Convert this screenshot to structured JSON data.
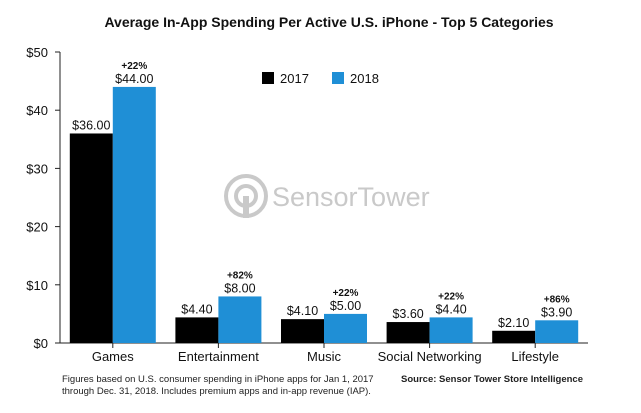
{
  "chart_data": {
    "type": "bar",
    "title": "Average In-App Spending Per Active U.S. iPhone - Top 5 Categories",
    "xlabel": "",
    "ylabel": "",
    "ylim": [
      0,
      50
    ],
    "yticks": [
      0,
      10,
      20,
      30,
      40,
      50
    ],
    "ytick_labels": [
      "$0",
      "$10",
      "$20",
      "$30",
      "$40",
      "$50"
    ],
    "grid": false,
    "legend_position": "top-center",
    "categories": [
      "Games",
      "Entertainment",
      "Music",
      "Social Networking",
      "Lifestyle"
    ],
    "series": [
      {
        "name": "2017",
        "color": "#000000",
        "values": [
          36.0,
          4.4,
          4.1,
          3.6,
          2.1
        ],
        "labels": [
          "$36.00",
          "$4.40",
          "$4.10",
          "$3.60",
          "$2.10"
        ]
      },
      {
        "name": "2018",
        "color": "#1F8FD6",
        "values": [
          44.0,
          8.0,
          5.0,
          4.4,
          3.9
        ],
        "labels": [
          "$44.00",
          "$8.00",
          "$5.00",
          "$4.40",
          "$3.90"
        ]
      }
    ],
    "growth_labels": [
      "+22%",
      "+82%",
      "+22%",
      "+22%",
      "+86%"
    ]
  },
  "watermark": {
    "text": "SensorTower",
    "color": "#c9c9c9"
  },
  "footnote": {
    "line1": "Figures based on U.S. consumer spending in iPhone apps for Jan 1, 2017",
    "line2": "through Dec. 31, 2018. Includes premium apps and in-app revenue (IAP)."
  },
  "source": "Source: Sensor Tower Store Intelligence"
}
